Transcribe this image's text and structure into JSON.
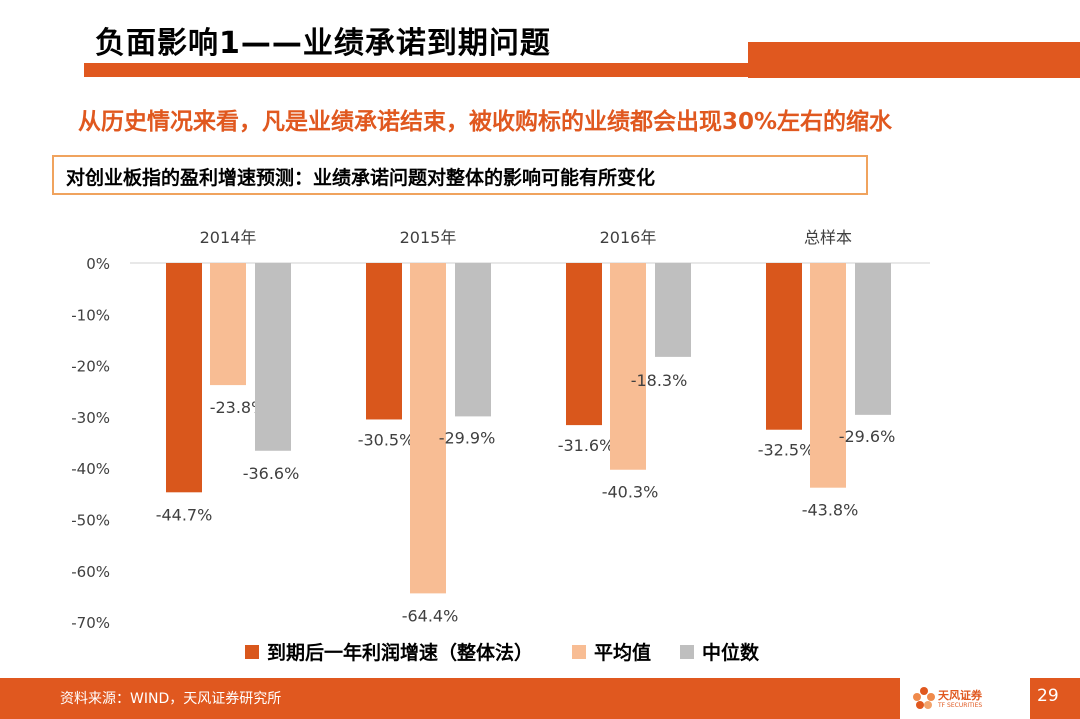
{
  "slide": {
    "title": "负面影响1——业绩承诺到期问题",
    "subtitle": "从历史情况来看，凡是业绩承诺结束，被收购标的业绩都会出现30%左右的缩水",
    "box_title": "对创业板指的盈利增速预测：业绩承诺问题对整体的影响可能有所变化",
    "source": "资料来源：WIND，天风证券研究所",
    "logo_text": "天风证券",
    "logo_sub": "TF SECURITIES",
    "page_number": "29"
  },
  "colors": {
    "accent": "#e0581f",
    "series1": "#d9571c",
    "series2": "#f8bd94",
    "series3": "#bfbfbf"
  },
  "chart_data": {
    "type": "bar",
    "categories": [
      "2014年",
      "2015年",
      "2016年",
      "总样本"
    ],
    "series": [
      {
        "name": "到期后一年利润增速（整体法）",
        "values": [
          -44.7,
          -30.5,
          -31.6,
          -32.5
        ],
        "labels": [
          "-44.7%",
          "-30.5%",
          "-31.6%",
          "-32.5%"
        ]
      },
      {
        "name": "平均值",
        "values": [
          -23.8,
          -64.4,
          -40.3,
          -43.8
        ],
        "labels": [
          "-23.8%",
          "-64.4%",
          "-40.3%",
          "-43.8%"
        ]
      },
      {
        "name": "中位数",
        "values": [
          -36.6,
          -29.9,
          -18.3,
          -29.6
        ],
        "labels": [
          "-36.6%",
          "-29.9%",
          "-18.3%",
          "-29.6%"
        ]
      }
    ],
    "yticks": [
      "0%",
      "-10%",
      "-20%",
      "-30%",
      "-40%",
      "-50%",
      "-60%",
      "-70%"
    ],
    "ylim": [
      -70,
      0
    ],
    "xaxis_position": "top",
    "legend_position": "bottom",
    "grid": false
  }
}
